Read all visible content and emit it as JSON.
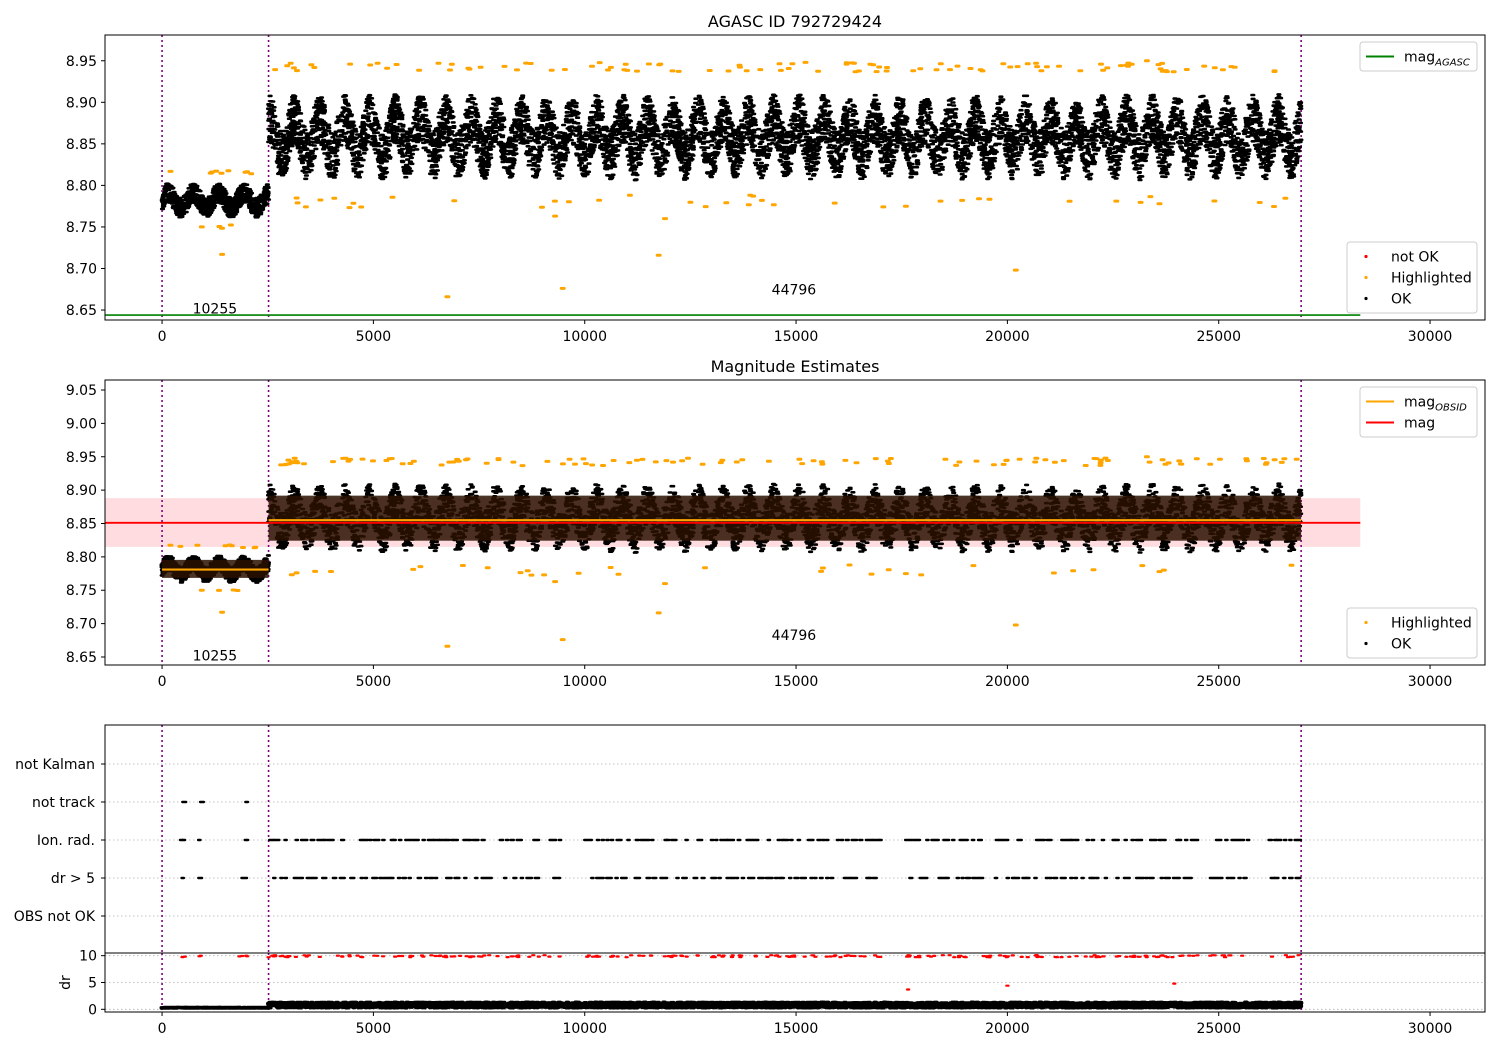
{
  "figure": {
    "colors": {
      "ok": "#000000",
      "highlighted": "#ffa500",
      "not_ok": "#ff0000",
      "mag_agasc": "#008000",
      "mag_obsid": "#ffa500",
      "mag": "#ff0000",
      "mag_band": "#ffd0d5",
      "obs_boundary": "#800080",
      "grid": "#b0b0b0"
    },
    "obs_boundaries": [
      0,
      2520,
      26950
    ]
  },
  "chart_data": [
    {
      "type": "scatter",
      "title": "AGASC ID 792729424",
      "xlabel": "",
      "ylabel": "",
      "xlim": [
        -1350,
        31300
      ],
      "ylim": [
        8.638,
        8.981
      ],
      "x_ticks": [
        0,
        5000,
        10000,
        15000,
        20000,
        25000,
        30000
      ],
      "x_tick_labels": [
        "0",
        "5000",
        "10000",
        "15000",
        "20000",
        "25000",
        "30000"
      ],
      "y_ticks": [
        8.65,
        8.7,
        8.75,
        8.8,
        8.85,
        8.9,
        8.95
      ],
      "y_tick_labels": [
        "8.65",
        "8.70",
        "8.75",
        "8.80",
        "8.85",
        "8.90",
        "8.95"
      ],
      "grid": false,
      "observations": [
        {
          "id": "10255",
          "x_start": 0,
          "x_end": 2520,
          "ok_mean": 8.782,
          "ok_halfwidth": 0.018
        },
        {
          "id": "44796",
          "x_start": 2520,
          "x_end": 26950,
          "ok_mean": 8.858,
          "ok_halfwidth": 0.045
        }
      ],
      "obs_labels": [
        {
          "text": "10255",
          "x": 1250,
          "y": 8.652
        },
        {
          "text": "44796",
          "x": 14950,
          "y": 8.675
        }
      ],
      "highlighted_outliers": [
        {
          "x": 6750,
          "y": 8.666
        },
        {
          "x": 9480,
          "y": 8.676
        },
        {
          "x": 11750,
          "y": 8.716
        },
        {
          "x": 20200,
          "y": 8.698
        },
        {
          "x": 1420,
          "y": 8.717
        },
        {
          "x": 9300,
          "y": 8.763
        },
        {
          "x": 11900,
          "y": 8.76
        },
        {
          "x": 23600,
          "y": 8.778
        },
        {
          "x": 17600,
          "y": 8.775
        },
        {
          "x": 940,
          "y": 8.75
        },
        {
          "x": 4450,
          "y": 8.946
        },
        {
          "x": 23300,
          "y": 8.95
        }
      ],
      "lines": [
        {
          "name": "mag_AGASC",
          "y": 8.644,
          "x_start": -1350,
          "x_end": 28350
        }
      ],
      "legends": [
        {
          "position": "upper-right",
          "entries": [
            {
              "label": "mag",
              "subscript": "AGASC",
              "marker": "line",
              "color": "#008000"
            }
          ]
        },
        {
          "position": "lower-right",
          "entries": [
            {
              "label": "not OK",
              "marker": "dot",
              "color": "#ff0000"
            },
            {
              "label": "Highlighted",
              "marker": "dot",
              "color": "#ffa500"
            },
            {
              "label": "OK",
              "marker": "dot",
              "color": "#000000"
            }
          ]
        }
      ]
    },
    {
      "type": "scatter",
      "title": "Magnitude Estimates",
      "xlabel": "",
      "ylabel": "",
      "xlim": [
        -1350,
        31300
      ],
      "ylim": [
        8.638,
        9.065
      ],
      "x_ticks": [
        0,
        5000,
        10000,
        15000,
        20000,
        25000,
        30000
      ],
      "x_tick_labels": [
        "0",
        "5000",
        "10000",
        "15000",
        "20000",
        "25000",
        "30000"
      ],
      "y_ticks": [
        8.65,
        8.7,
        8.75,
        8.8,
        8.85,
        8.9,
        8.95,
        9.0,
        9.05
      ],
      "y_tick_labels": [
        "8.65",
        "8.70",
        "8.75",
        "8.80",
        "8.85",
        "8.90",
        "8.95",
        "9.00",
        "9.05"
      ],
      "grid": false,
      "observations": [
        {
          "id": "10255",
          "x_start": 0,
          "x_end": 2520,
          "ok_mean": 8.782,
          "ok_halfwidth": 0.018,
          "mag_obsid": 8.781
        },
        {
          "id": "44796",
          "x_start": 2520,
          "x_end": 26950,
          "ok_mean": 8.858,
          "ok_halfwidth": 0.045,
          "mag_obsid": 8.855
        }
      ],
      "obs_labels": [
        {
          "text": "10255",
          "x": 1250,
          "y": 8.652
        },
        {
          "text": "44796",
          "x": 14950,
          "y": 8.683
        }
      ],
      "highlighted_outliers": [
        {
          "x": 6750,
          "y": 8.666
        },
        {
          "x": 9480,
          "y": 8.676
        },
        {
          "x": 11750,
          "y": 8.716
        },
        {
          "x": 20200,
          "y": 8.698
        },
        {
          "x": 1420,
          "y": 8.717
        },
        {
          "x": 9300,
          "y": 8.763
        },
        {
          "x": 11900,
          "y": 8.76
        },
        {
          "x": 23600,
          "y": 8.778
        },
        {
          "x": 17600,
          "y": 8.775
        },
        {
          "x": 940,
          "y": 8.75
        },
        {
          "x": 4450,
          "y": 8.946
        },
        {
          "x": 23300,
          "y": 8.95
        }
      ],
      "mag": {
        "value": 8.851,
        "band": [
          8.815,
          8.888
        ],
        "x_start": -1350,
        "x_end": 28350
      },
      "legends": [
        {
          "position": "upper-right",
          "entries": [
            {
              "label": "mag",
              "subscript": "OBSID",
              "marker": "line",
              "color": "#ffa500"
            },
            {
              "label": "mag",
              "marker": "line",
              "color": "#ff0000"
            }
          ]
        },
        {
          "position": "lower-right",
          "entries": [
            {
              "label": "Highlighted",
              "marker": "dot",
              "color": "#ffa500"
            },
            {
              "label": "OK",
              "marker": "dot",
              "color": "#000000"
            }
          ]
        }
      ]
    },
    {
      "type": "scatter",
      "title": "",
      "xlabel": "",
      "ylabel": "",
      "xlim": [
        -1350,
        31300
      ],
      "categories": [
        "not Kalman",
        "not track",
        "Ion. rad.",
        "dr > 5",
        "OBS not OK"
      ],
      "grid": true,
      "flags": {
        "not Kalman": [],
        "not track": [
          [
            480,
            560
          ],
          [
            920,
            980
          ],
          [
            1950,
            2050
          ]
        ],
        "Ion. rad.": [
          [
            430,
            560
          ],
          [
            880,
            920
          ],
          [
            1800,
            2050
          ],
          [
            2520,
            9450
          ],
          [
            10000,
            12450
          ],
          [
            12600,
            17000
          ],
          [
            17600,
            20500
          ],
          [
            20600,
            22350
          ],
          [
            22500,
            24500
          ],
          [
            24800,
            25700
          ],
          [
            26200,
            26950
          ]
        ],
        "dr > 5": [
          [
            430,
            560
          ],
          [
            880,
            920
          ],
          [
            1800,
            2050
          ],
          [
            2520,
            9450
          ],
          [
            10000,
            12450
          ],
          [
            12600,
            17000
          ],
          [
            17600,
            20500
          ],
          [
            20600,
            22350
          ],
          [
            22500,
            24500
          ],
          [
            24800,
            25700
          ],
          [
            26200,
            26950
          ]
        ],
        "OBS not OK": []
      }
    },
    {
      "type": "scatter",
      "title": "",
      "xlabel": "",
      "ylabel": "dr",
      "xlim": [
        -1350,
        31300
      ],
      "ylim": [
        -0.5,
        10.5
      ],
      "y_ticks": [
        0,
        5,
        10
      ],
      "y_tick_labels": [
        "0",
        "5",
        "10"
      ],
      "x_ticks": [
        0,
        5000,
        10000,
        15000,
        20000,
        25000,
        30000
      ],
      "x_tick_labels": [
        "0",
        "5000",
        "10000",
        "15000",
        "20000",
        "25000",
        "30000"
      ],
      "grid": true,
      "dr_ok_band": [
        [
          0,
          2520,
          0.15,
          0.45
        ],
        [
          2520,
          26950,
          0.2,
          1.4
        ]
      ],
      "dr_not_ok_y": 9.9,
      "not_ok_points": [
        {
          "x": 17650,
          "y": 3.7
        },
        {
          "x": 20000,
          "y": 4.4
        },
        {
          "x": 23950,
          "y": 4.8
        }
      ]
    }
  ]
}
